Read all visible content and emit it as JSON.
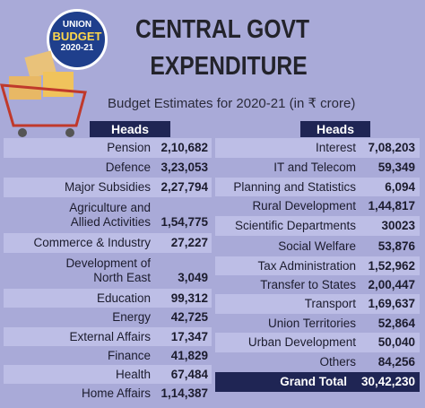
{
  "badge": {
    "line1": "UNION",
    "line2": "BUDGET",
    "line3": "2020-21"
  },
  "header": {
    "title_line1": "CENTRAL GOVT",
    "title_line2": "EXPENDITURE",
    "subtitle": "Budget Estimates for 2020-21 (in ₹ crore)"
  },
  "left_table": {
    "heading": "Heads",
    "rows": [
      {
        "label": [
          "Pension"
        ],
        "value": "2,10,682"
      },
      {
        "label": [
          "Defence"
        ],
        "value": "3,23,053"
      },
      {
        "label": [
          "Major Subsidies"
        ],
        "value": "2,27,794"
      },
      {
        "label": [
          "Agriculture and",
          "Allied Activities"
        ],
        "value": "1,54,775"
      },
      {
        "label": [
          "Commerce & Industry"
        ],
        "value": "27,227"
      },
      {
        "label": [
          "Development of",
          "North East"
        ],
        "value": "3,049"
      },
      {
        "label": [
          "Education"
        ],
        "value": "99,312"
      },
      {
        "label": [
          "Energy"
        ],
        "value": "42,725"
      },
      {
        "label": [
          "External Affairs"
        ],
        "value": "17,347"
      },
      {
        "label": [
          "Finance"
        ],
        "value": "41,829"
      },
      {
        "label": [
          "Health"
        ],
        "value": "67,484"
      },
      {
        "label": [
          "Home Affairs"
        ],
        "value": "1,14,387"
      }
    ]
  },
  "right_table": {
    "heading": "Heads",
    "rows": [
      {
        "label": [
          "Interest"
        ],
        "value": "7,08,203"
      },
      {
        "label": [
          "IT and Telecom"
        ],
        "value": "59,349"
      },
      {
        "label": [
          "Planning and Statistics"
        ],
        "value": "6,094"
      },
      {
        "label": [
          "Rural Development"
        ],
        "value": "1,44,817"
      },
      {
        "label": [
          "Scientific Departments"
        ],
        "value": "30023"
      },
      {
        "label": [
          "Social Welfare"
        ],
        "value": "53,876"
      },
      {
        "label": [
          "Tax Administration"
        ],
        "value": "1,52,962"
      },
      {
        "label": [
          "Transfer to States"
        ],
        "value": "2,00,447"
      },
      {
        "label": [
          "Transport"
        ],
        "value": "1,69,637"
      },
      {
        "label": [
          "Union Territories"
        ],
        "value": "52,864"
      },
      {
        "label": [
          "Urban Development"
        ],
        "value": "50,040"
      },
      {
        "label": [
          "Others"
        ],
        "value": "84,256"
      }
    ],
    "total": {
      "label": "Grand Total",
      "value": "30,42,230"
    }
  }
}
